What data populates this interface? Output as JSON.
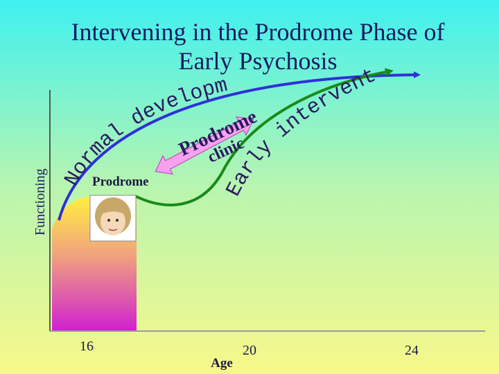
{
  "title": {
    "line1": "Intervening in the Prodrome Phase of",
    "line2": "Early Psychosis"
  },
  "axes": {
    "y_label": "Functioning",
    "x_label": "Age",
    "x_ticks": [
      "16",
      "20",
      "24"
    ]
  },
  "curves": {
    "normal": "Normal development",
    "early": "Early intervention"
  },
  "labels": {
    "prodrome": "Prodrome",
    "clinic_line1": "Prodrome",
    "clinic_line2": "clinic"
  }
}
